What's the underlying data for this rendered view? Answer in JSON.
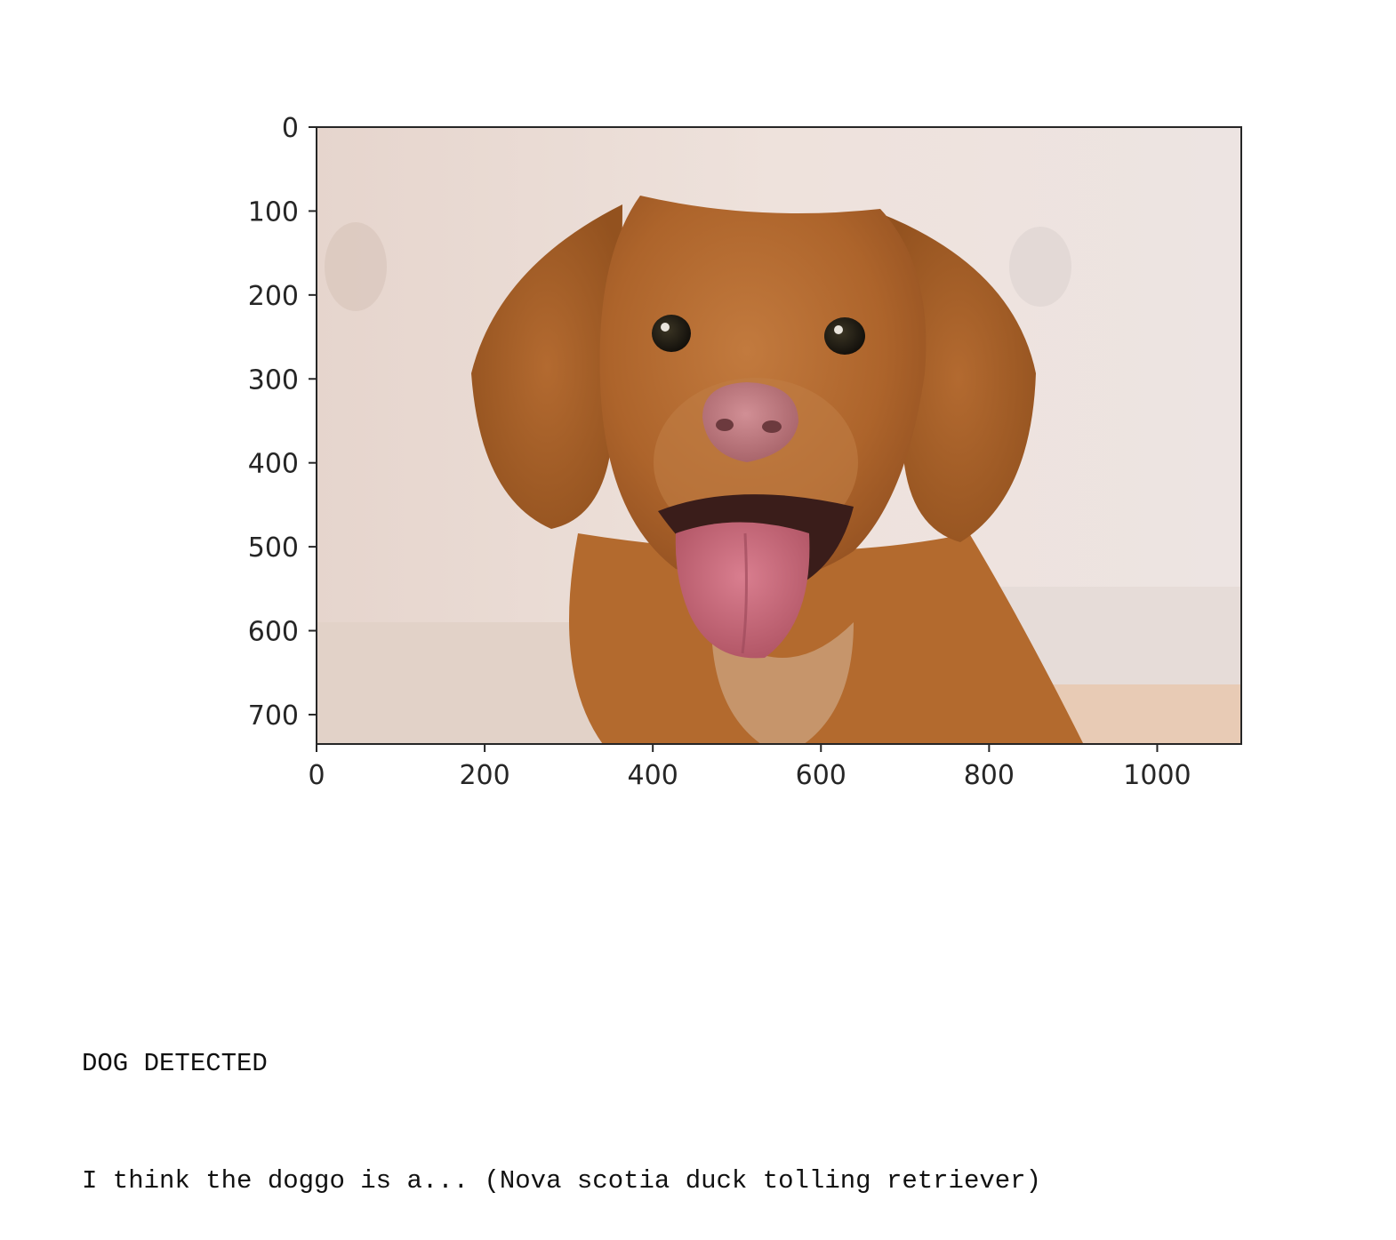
{
  "output": {
    "line1": "DOG DETECTED",
    "line2": "I think the doggo is a... (Nova scotia duck tolling retriever)"
  },
  "chart_data": {
    "type": "image",
    "image_subject": "photo of a smiling brown Nova Scotia duck tolling retriever dog",
    "x_ticks": [
      0,
      200,
      400,
      600,
      800,
      1000
    ],
    "y_ticks": [
      0,
      100,
      200,
      300,
      400,
      500,
      600,
      700
    ],
    "xlim": [
      0,
      1100
    ],
    "ylim": [
      735,
      0
    ],
    "colors": {
      "background": "#ece0da",
      "fur": "#b5692f",
      "tongue": "#c86b7f"
    }
  }
}
